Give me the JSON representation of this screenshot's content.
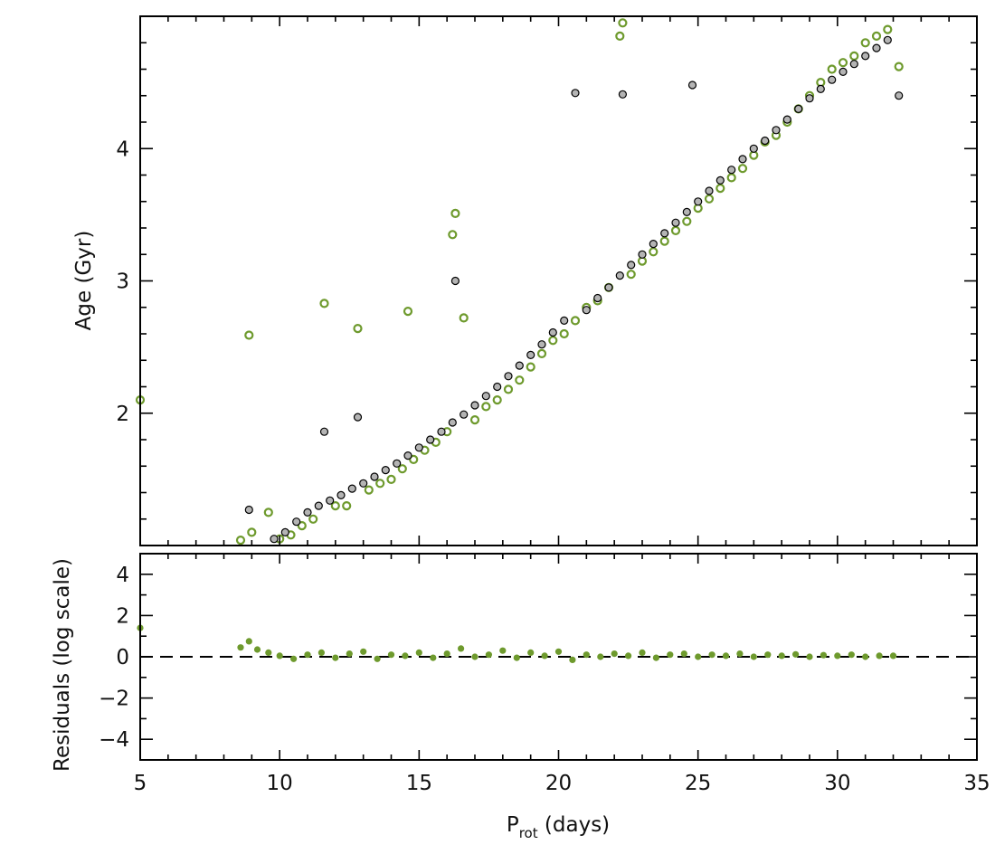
{
  "chart_data": [
    {
      "panel": "top",
      "type": "scatter",
      "ylabel": "Age (Gyr)",
      "xlim": [
        5,
        35
      ],
      "ylim": [
        1.0,
        5.0
      ],
      "xticks": [
        5,
        10,
        15,
        20,
        25,
        30,
        35
      ],
      "yticks": [
        2,
        3,
        4
      ],
      "ytick_labels": [
        "2",
        "3",
        "4"
      ],
      "series": [
        {
          "marker": "open-circle",
          "color": "#6e9a2d",
          "x": [
            5.0,
            8.6,
            8.9,
            9.0,
            9.6,
            10.0,
            10.4,
            10.8,
            11.2,
            11.6,
            12.0,
            12.4,
            12.8,
            13.2,
            13.6,
            14.0,
            14.4,
            14.6,
            14.8,
            15.2,
            15.6,
            16.0,
            16.2,
            16.3,
            16.6,
            17.0,
            17.4,
            17.8,
            18.2,
            18.6,
            19.0,
            19.4,
            19.8,
            20.2,
            20.6,
            21.0,
            21.4,
            21.8,
            22.2,
            22.3,
            22.6,
            23.0,
            23.4,
            23.8,
            24.2,
            24.6,
            25.0,
            25.4,
            25.8,
            26.2,
            26.6,
            27.0,
            27.4,
            27.8,
            28.2,
            28.6,
            29.0,
            29.4,
            29.8,
            30.2,
            30.6,
            31.0,
            31.4,
            31.8,
            32.2
          ],
          "y": [
            2.1,
            1.04,
            2.59,
            1.1,
            1.25,
            1.05,
            1.08,
            1.15,
            1.2,
            2.83,
            1.3,
            1.3,
            2.64,
            1.42,
            1.47,
            1.5,
            1.58,
            2.77,
            1.65,
            1.72,
            1.78,
            1.86,
            3.35,
            3.51,
            2.72,
            1.95,
            2.05,
            2.1,
            2.18,
            2.25,
            2.35,
            2.45,
            2.55,
            2.6,
            2.7,
            2.8,
            2.85,
            2.95,
            4.85,
            4.95,
            3.05,
            3.15,
            3.22,
            3.3,
            3.38,
            3.45,
            3.55,
            3.62,
            3.7,
            3.78,
            3.85,
            3.95,
            4.05,
            4.1,
            4.2,
            4.3,
            4.4,
            4.5,
            4.6,
            4.65,
            4.7,
            4.8,
            4.85,
            4.9,
            4.62
          ]
        },
        {
          "marker": "filled-circle",
          "color": "#b4b4b4",
          "edgecolor": "#000000",
          "x": [
            8.9,
            9.8,
            10.2,
            10.6,
            11.0,
            11.4,
            11.6,
            11.8,
            12.2,
            12.6,
            12.8,
            13.0,
            13.4,
            13.8,
            14.2,
            14.6,
            15.0,
            15.4,
            15.8,
            16.2,
            16.3,
            16.6,
            17.0,
            17.4,
            17.8,
            18.2,
            18.6,
            19.0,
            19.4,
            19.8,
            20.2,
            20.6,
            21.0,
            21.4,
            21.8,
            22.2,
            22.3,
            22.6,
            23.0,
            23.4,
            23.8,
            24.2,
            24.6,
            24.8,
            25.0,
            25.4,
            25.8,
            26.2,
            26.6,
            27.0,
            27.4,
            27.8,
            28.2,
            28.6,
            29.0,
            29.4,
            29.8,
            30.2,
            30.6,
            31.0,
            31.4,
            31.8,
            32.2
          ],
          "y": [
            1.27,
            1.05,
            1.1,
            1.18,
            1.25,
            1.3,
            1.86,
            1.34,
            1.38,
            1.43,
            1.97,
            1.47,
            1.52,
            1.57,
            1.62,
            1.68,
            1.74,
            1.8,
            1.86,
            1.93,
            3.0,
            1.99,
            2.06,
            2.13,
            2.2,
            2.28,
            2.36,
            2.44,
            2.52,
            2.61,
            2.7,
            4.42,
            2.78,
            2.87,
            2.95,
            3.04,
            4.41,
            3.12,
            3.2,
            3.28,
            3.36,
            3.44,
            3.52,
            4.48,
            3.6,
            3.68,
            3.76,
            3.84,
            3.92,
            4.0,
            4.06,
            4.14,
            4.22,
            4.3,
            4.38,
            4.45,
            4.52,
            4.58,
            4.64,
            4.7,
            4.76,
            4.82,
            4.4
          ]
        }
      ]
    },
    {
      "panel": "bottom",
      "type": "scatter",
      "xlabel_main": "P",
      "xlabel_sub": "rot",
      "xlabel_rest": " (days)",
      "ylabel": "Residuals (log scale)",
      "xlim": [
        5,
        35
      ],
      "ylim": [
        -5,
        5
      ],
      "xticks": [
        5,
        10,
        15,
        20,
        25,
        30,
        35
      ],
      "xtick_labels": [
        "5",
        "10",
        "15",
        "20",
        "25",
        "30",
        "35"
      ],
      "yticks": [
        -4,
        -2,
        0,
        2,
        4
      ],
      "ytick_labels": [
        "−4",
        "−2",
        "0",
        "2",
        "4"
      ],
      "reference_line": {
        "y": 0,
        "style": "dashed"
      },
      "series": [
        {
          "marker": "filled-circle",
          "color": "#6e9a2d",
          "x": [
            5.0,
            8.6,
            8.9,
            9.2,
            9.6,
            10.0,
            10.5,
            11.0,
            11.5,
            12.0,
            12.5,
            13.0,
            13.5,
            14.0,
            14.5,
            15.0,
            15.5,
            16.0,
            16.5,
            17.0,
            17.5,
            18.0,
            18.5,
            19.0,
            19.5,
            20.0,
            20.5,
            21.0,
            21.5,
            22.0,
            22.5,
            23.0,
            23.5,
            24.0,
            24.5,
            25.0,
            25.5,
            26.0,
            26.5,
            27.0,
            27.5,
            28.0,
            28.5,
            29.0,
            29.5,
            30.0,
            30.5,
            31.0,
            31.5,
            32.0
          ],
          "y": [
            1.4,
            0.45,
            0.75,
            0.35,
            0.2,
            0.05,
            -0.1,
            0.1,
            0.2,
            -0.05,
            0.15,
            0.25,
            -0.1,
            0.1,
            0.05,
            0.2,
            -0.05,
            0.15,
            0.4,
            0.0,
            0.1,
            0.3,
            -0.05,
            0.2,
            0.05,
            0.25,
            -0.15,
            0.1,
            0.0,
            0.15,
            0.05,
            0.2,
            -0.05,
            0.1,
            0.15,
            0.0,
            0.1,
            0.05,
            0.15,
            0.0,
            0.1,
            0.05,
            0.12,
            0.0,
            0.08,
            0.05,
            0.1,
            0.0,
            0.05,
            0.05
          ]
        }
      ]
    }
  ]
}
